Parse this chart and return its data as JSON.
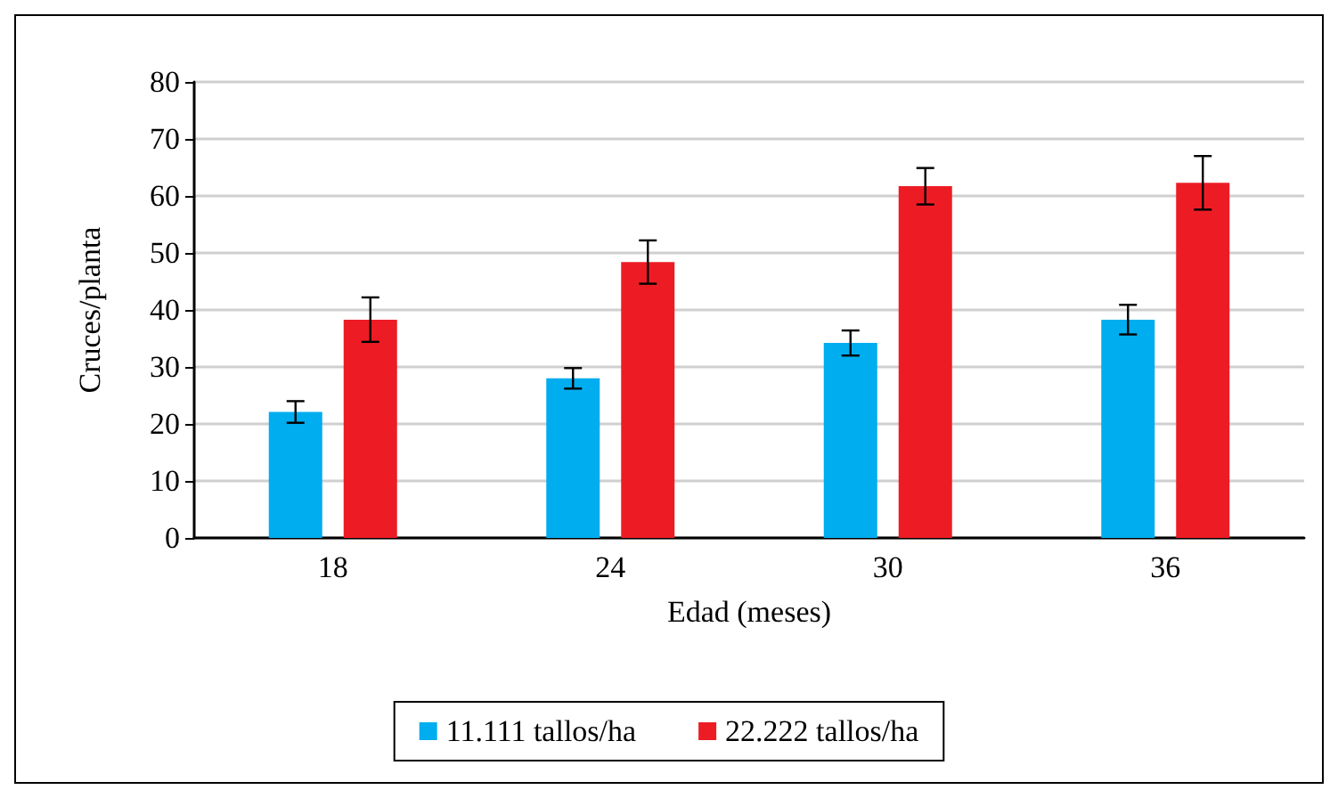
{
  "chart_data": {
    "type": "bar",
    "xlabel": "Edad (meses)",
    "ylabel": "Cruces/planta",
    "categories": [
      "18",
      "24",
      "30",
      "36"
    ],
    "series": [
      {
        "name": "11.111 tallos/ha",
        "color": "#00adef",
        "values": [
          22.1,
          28.0,
          34.2,
          38.3
        ],
        "errors": [
          1.9,
          1.8,
          2.2,
          2.6
        ]
      },
      {
        "name": "22.222 tallos/ha",
        "color": "#ed1c24",
        "values": [
          38.3,
          48.4,
          61.7,
          62.3
        ],
        "errors": [
          3.9,
          3.8,
          3.2,
          4.7
        ]
      }
    ],
    "ylim": [
      0,
      80
    ],
    "yticks": [
      0,
      10,
      20,
      30,
      40,
      50,
      60,
      70,
      80
    ],
    "grid": "y",
    "legend": "bottom"
  }
}
